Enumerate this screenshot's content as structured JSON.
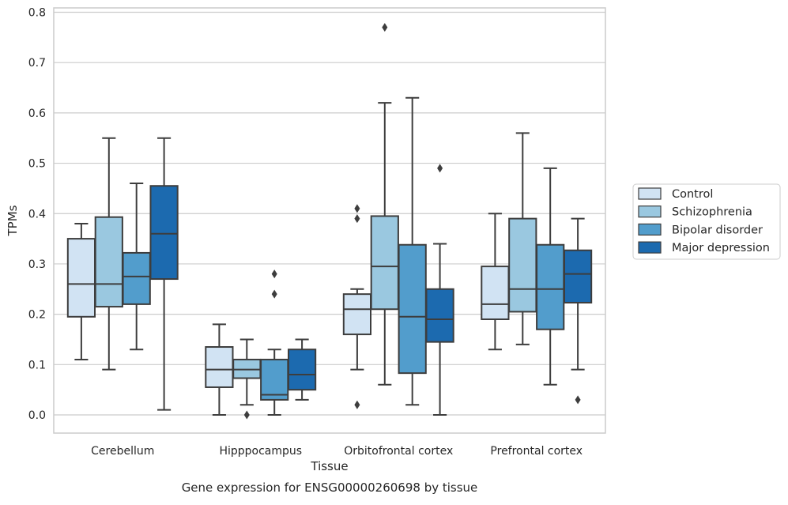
{
  "chart_data": {
    "type": "box",
    "title": "",
    "caption": "Gene expression for ENSG00000260698 by tissue",
    "xlabel": "Tissue",
    "ylabel": "TPMs",
    "ylim": [
      -0.04,
      0.81
    ],
    "yticks": [
      0.0,
      0.1,
      0.2,
      0.3,
      0.4,
      0.5,
      0.6,
      0.7,
      0.8
    ],
    "grid": true,
    "legend_position": "right",
    "categories": [
      "Cerebellum",
      "Hipppocampus",
      "Orbitofrontal cortex",
      "Prefrontal cortex"
    ],
    "series": [
      {
        "name": "Control",
        "color": "#d1e3f3",
        "boxes": [
          {
            "whislo": 0.11,
            "q1": 0.195,
            "med": 0.26,
            "q3": 0.35,
            "whishi": 0.38,
            "fliers": []
          },
          {
            "whislo": 0.0,
            "q1": 0.055,
            "med": 0.09,
            "q3": 0.135,
            "whishi": 0.18,
            "fliers": []
          },
          {
            "whislo": 0.09,
            "q1": 0.16,
            "med": 0.21,
            "q3": 0.24,
            "whishi": 0.25,
            "fliers": [
              0.02,
              0.39,
              0.41
            ]
          },
          {
            "whislo": 0.13,
            "q1": 0.19,
            "med": 0.22,
            "q3": 0.295,
            "whishi": 0.4,
            "fliers": []
          }
        ]
      },
      {
        "name": "Schizophrenia",
        "color": "#9ac8e0",
        "boxes": [
          {
            "whislo": 0.09,
            "q1": 0.215,
            "med": 0.26,
            "q3": 0.393,
            "whishi": 0.55,
            "fliers": []
          },
          {
            "whislo": 0.02,
            "q1": 0.073,
            "med": 0.09,
            "q3": 0.11,
            "whishi": 0.15,
            "fliers": [
              0.0
            ]
          },
          {
            "whislo": 0.06,
            "q1": 0.21,
            "med": 0.295,
            "q3": 0.395,
            "whishi": 0.62,
            "fliers": [
              0.77
            ]
          },
          {
            "whislo": 0.14,
            "q1": 0.205,
            "med": 0.25,
            "q3": 0.39,
            "whishi": 0.56,
            "fliers": []
          }
        ]
      },
      {
        "name": "Bipolar disorder",
        "color": "#529dcc",
        "boxes": [
          {
            "whislo": 0.13,
            "q1": 0.22,
            "med": 0.275,
            "q3": 0.322,
            "whishi": 0.46,
            "fliers": []
          },
          {
            "whislo": 0.0,
            "q1": 0.03,
            "med": 0.04,
            "q3": 0.11,
            "whishi": 0.13,
            "fliers": [
              0.24,
              0.28
            ]
          },
          {
            "whislo": 0.02,
            "q1": 0.083,
            "med": 0.195,
            "q3": 0.338,
            "whishi": 0.63,
            "fliers": []
          },
          {
            "whislo": 0.06,
            "q1": 0.17,
            "med": 0.25,
            "q3": 0.338,
            "whishi": 0.49,
            "fliers": []
          }
        ]
      },
      {
        "name": "Major depression",
        "color": "#1c6aaf",
        "boxes": [
          {
            "whislo": 0.01,
            "q1": 0.27,
            "med": 0.36,
            "q3": 0.455,
            "whishi": 0.55,
            "fliers": []
          },
          {
            "whislo": 0.03,
            "q1": 0.05,
            "med": 0.08,
            "q3": 0.13,
            "whishi": 0.15,
            "fliers": []
          },
          {
            "whislo": 0.0,
            "q1": 0.145,
            "med": 0.19,
            "q3": 0.25,
            "whishi": 0.34,
            "fliers": [
              0.49
            ]
          },
          {
            "whislo": 0.09,
            "q1": 0.223,
            "med": 0.28,
            "q3": 0.327,
            "whishi": 0.39,
            "fliers": [
              0.03
            ]
          }
        ]
      }
    ]
  }
}
